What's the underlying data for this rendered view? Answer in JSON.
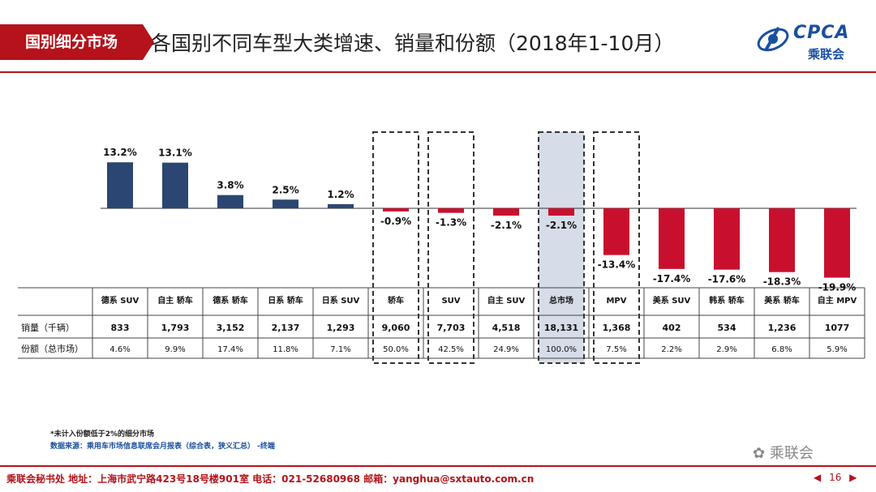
{
  "header": {
    "section": "国别细分市场",
    "title": "各国别不同车型大类增速、销量和份额（2018年1-10月）",
    "logo_text": "CPCA",
    "logo_sub": "乘联会"
  },
  "colors": {
    "positive": "#2b4672",
    "negative": "#c8102e",
    "accent": "#b5121b",
    "highlight": "#d6dce8"
  },
  "chart_data": {
    "type": "bar",
    "categories": [
      "德系 SUV",
      "自主 轿车",
      "德系 轿车",
      "日系 轿车",
      "日系 SUV",
      "轿车",
      "SUV",
      "自主 SUV",
      "总市场",
      "MPV",
      "美系 SUV",
      "韩系 轿车",
      "美系 轿车",
      "自主 MPV"
    ],
    "values": [
      13.2,
      13.1,
      3.8,
      2.5,
      1.2,
      -0.9,
      -1.3,
      -2.1,
      -2.1,
      -13.4,
      -17.4,
      -17.6,
      -18.3,
      -19.9
    ],
    "value_labels": [
      "13.2%",
      "13.1%",
      "3.8%",
      "2.5%",
      "1.2%",
      "-0.9%",
      "-1.3%",
      "-2.1%",
      "-2.1%",
      "-13.4%",
      "-17.4%",
      "-17.6%",
      "-18.3%",
      "-19.9%"
    ],
    "highlighted": [
      "轿车",
      "SUV",
      "总市场",
      "MPV"
    ],
    "shaded": [
      "总市场"
    ],
    "table": {
      "rows": [
        {
          "label": "销量（千辆）",
          "values": [
            "833",
            "1,793",
            "3,152",
            "2,137",
            "1,293",
            "9,060",
            "7,703",
            "4,518",
            "18,131",
            "1,368",
            "402",
            "534",
            "1,236",
            "1077"
          ]
        },
        {
          "label": "份额（总市场）",
          "values": [
            "4.6%",
            "9.9%",
            "17.4%",
            "11.8%",
            "7.1%",
            "50.0%",
            "42.5%",
            "24.9%",
            "100.0%",
            "7.5%",
            "2.2%",
            "2.9%",
            "6.8%",
            "5.9%"
          ]
        }
      ]
    }
  },
  "notes": {
    "note": "*未计入份额低于2%的细分市场",
    "source": "数据来源：乘用车市场信息联席会月报表（综合表，狭义汇总）  -终端"
  },
  "watermark": "乘联会",
  "footer": {
    "text": "乘联会秘书处   地址：上海市武宁路423号18号楼901室  电话：021-52680968   邮箱：yanghua@sxtauto.com.cn",
    "page": "16",
    "prev": "◀",
    "next": "▶"
  }
}
